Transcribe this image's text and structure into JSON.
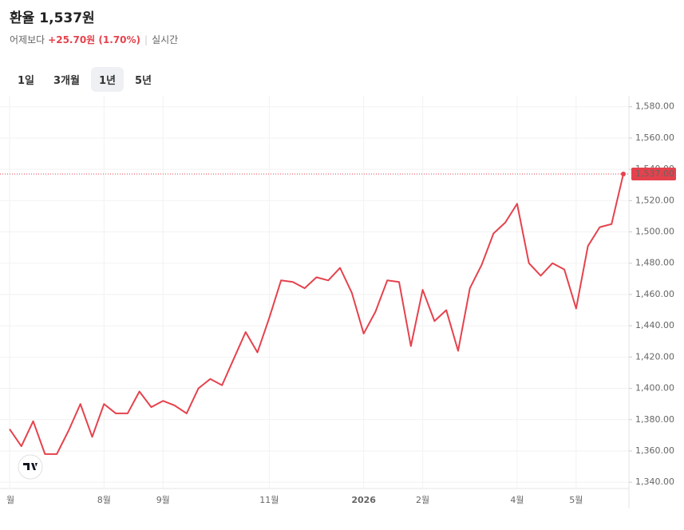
{
  "header": {
    "title": "환율",
    "price": "1,537원",
    "compare_label": "어제보다",
    "change": "+25.70원 (1.70%)",
    "realtime": "실시간"
  },
  "tabs": {
    "items": [
      "1일",
      "3개월",
      "1년",
      "5년"
    ],
    "active": 2
  },
  "chart_data": {
    "type": "line",
    "color": "#e5424d",
    "x": [
      "월",
      null,
      null,
      null,
      null,
      null,
      null,
      null,
      "8월",
      null,
      null,
      null,
      null,
      "9월",
      null,
      null,
      null,
      null,
      null,
      null,
      null,
      null,
      "11월",
      null,
      null,
      null,
      null,
      null,
      null,
      null,
      "2026",
      null,
      null,
      null,
      null,
      "2월",
      null,
      null,
      null,
      null,
      null,
      null,
      null,
      "4월",
      null,
      null,
      null,
      null,
      "5월",
      null,
      null,
      null,
      null
    ],
    "values": [
      1374,
      1363,
      1379,
      1358,
      1358,
      1373,
      1390,
      1369,
      1390,
      1384,
      1384,
      1398,
      1388,
      1392,
      1389,
      1384,
      1400,
      1406,
      1402,
      1419,
      1436,
      1423,
      1445,
      1469,
      1468,
      1464,
      1471,
      1469,
      1477,
      1461,
      1435,
      1449,
      1469,
      1468,
      1427,
      1463,
      1443,
      1450,
      1424,
      1464,
      1479,
      1499,
      1506,
      1518,
      1480,
      1472,
      1480,
      1476,
      1451,
      1491,
      1503,
      1505,
      1537
    ],
    "ylim": [
      1336,
      1587
    ],
    "yticks": [
      {
        "value": 1340,
        "label": "1,340.00"
      },
      {
        "value": 1360,
        "label": "1,360.00"
      },
      {
        "value": 1380,
        "label": "1,380.00"
      },
      {
        "value": 1400,
        "label": "1,400.00"
      },
      {
        "value": 1420,
        "label": "1,420.00"
      },
      {
        "value": 1440,
        "label": "1,440.00"
      },
      {
        "value": 1460,
        "label": "1,460.00"
      },
      {
        "value": 1480,
        "label": "1,480.00"
      },
      {
        "value": 1500,
        "label": "1,500.00"
      },
      {
        "value": 1520,
        "label": "1,520.00"
      },
      {
        "value": 1540,
        "label": "1,540.00"
      },
      {
        "value": 1560,
        "label": "1,560.00"
      },
      {
        "value": 1580,
        "label": "1,580.00"
      }
    ],
    "price_line": {
      "value": 1537,
      "label": "1,537.00"
    },
    "grid": true
  }
}
